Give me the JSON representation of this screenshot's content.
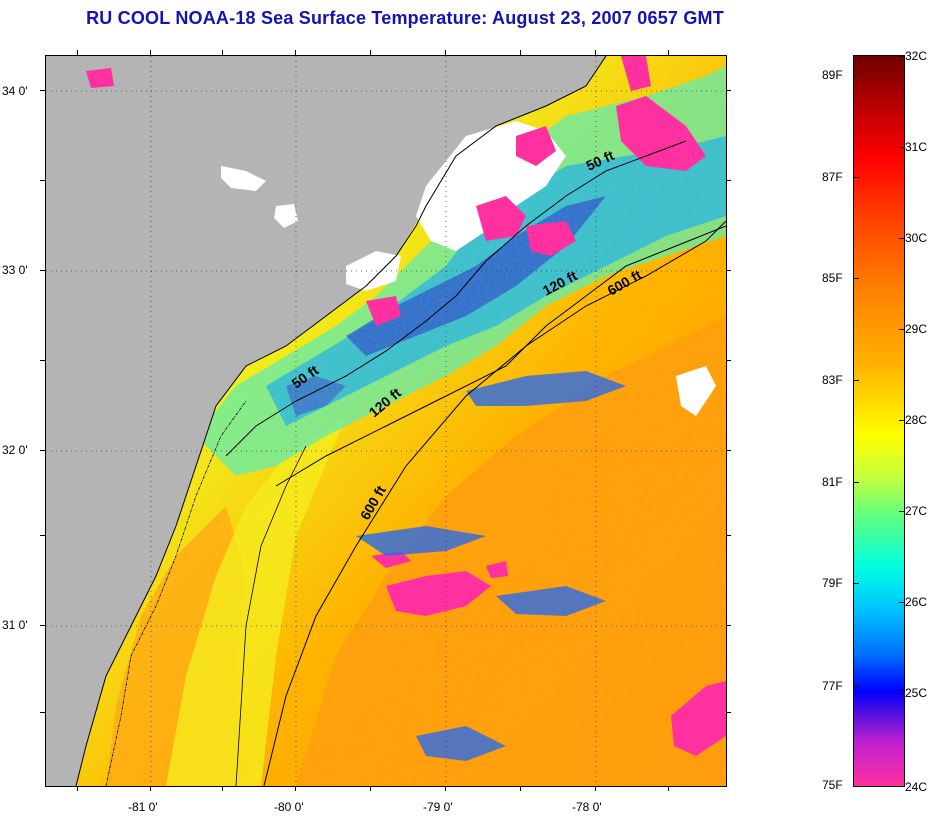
{
  "title": "RU COOL  NOAA-18  Sea Surface Temperature:  August 23, 2007 0657 GMT",
  "map": {
    "lat_labels": [
      "34 0'",
      "33 0'",
      "32 0'",
      "31 0'"
    ],
    "lon_labels": [
      "-81 0'",
      "-80 0'",
      "-79 0'",
      "-78 0'"
    ],
    "isobaths": [
      "50 ft",
      "120 ft",
      "600 ft",
      "50 ft",
      "120 ft",
      "600 ft"
    ],
    "colors": {
      "land": "#b4b4b4",
      "cloud": "#ffffff",
      "contour": "#000000"
    }
  },
  "colorbar": {
    "fahrenheit": [
      "89F",
      "87F",
      "85F",
      "83F",
      "81F",
      "79F",
      "77F",
      "75F"
    ],
    "celsius": [
      "32C",
      "31C",
      "30C",
      "29C",
      "28C",
      "27C",
      "26C",
      "25C",
      "24C"
    ]
  }
}
